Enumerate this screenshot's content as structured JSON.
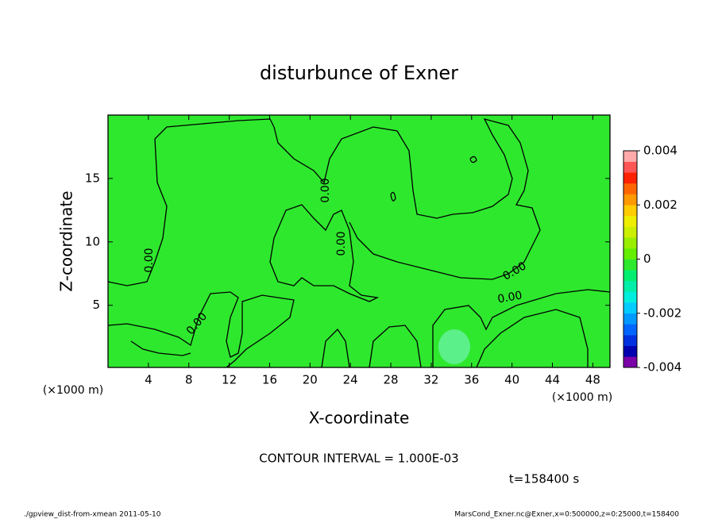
{
  "chart_data": {
    "type": "contour",
    "title": "disturbunce of Exner",
    "xlabel": "X-coordinate",
    "ylabel": "Z-coordinate",
    "x_unit": "(×1000 m)",
    "xlim": [
      0,
      49.7
    ],
    "xticks": [
      4,
      8,
      12,
      16,
      20,
      24,
      28,
      32,
      36,
      40,
      44,
      48
    ],
    "ylim": [
      0.1,
      20
    ],
    "yticks": [
      5,
      10,
      15
    ],
    "fill_color": "#2ee82e",
    "colorbar": {
      "clim": [
        -0.004,
        0.004
      ],
      "ticks": [
        -0.004,
        -0.002,
        0,
        0.002,
        0.004
      ],
      "colors": [
        "#7a00a8",
        "#0000b0",
        "#0030e0",
        "#0066ff",
        "#0099ff",
        "#00ccff",
        "#00eedd",
        "#00eea8",
        "#00ee70",
        "#2ee82e",
        "#66ee00",
        "#99ee00",
        "#ccee00",
        "#eeee00",
        "#ffcc00",
        "#ff9900",
        "#ff6600",
        "#ff2200",
        "#ff5555",
        "#ffaaaa"
      ]
    },
    "contour_labels": [
      "0.00",
      "0.00",
      "0.00",
      "0.00",
      "0.00",
      "0.00"
    ],
    "annotation": "CONTOUR INTERVAL = 1.000E-03",
    "time_label": "t=158400 s",
    "footer_left": "./gpview_dist-from-xmean  2011-05-10",
    "footer_right": "MarsCond_Exner.nc@Exner,x=0:500000,z=0:25000,t=158400"
  }
}
